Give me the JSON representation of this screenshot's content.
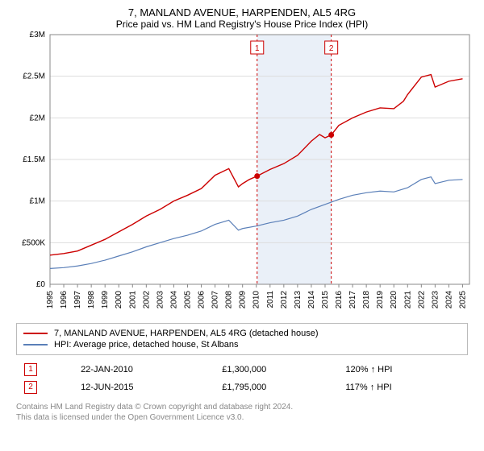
{
  "title": "7, MANLAND AVENUE, HARPENDEN, AL5 4RG",
  "subtitle": "Price paid vs. HM Land Registry's House Price Index (HPI)",
  "chart": {
    "type": "line",
    "background_color": "#ffffff",
    "plot_border_color": "#888888",
    "grid_color": "#dddddd",
    "xlim": [
      1995,
      2025.5
    ],
    "ylim": [
      0,
      3000000
    ],
    "yticks": [
      0,
      500000,
      1000000,
      1500000,
      2000000,
      2500000,
      3000000
    ],
    "ytick_labels": [
      "£0",
      "£500K",
      "£1M",
      "£1.5M",
      "£2M",
      "£2.5M",
      "£3M"
    ],
    "xticks": [
      1995,
      1996,
      1997,
      1998,
      1999,
      2000,
      2001,
      2002,
      2003,
      2004,
      2005,
      2006,
      2007,
      2008,
      2009,
      2010,
      2011,
      2012,
      2013,
      2014,
      2015,
      2016,
      2017,
      2018,
      2019,
      2020,
      2021,
      2022,
      2023,
      2024,
      2025
    ],
    "shaded_band": {
      "from": 2010.06,
      "to": 2015.45,
      "fill": "#eaf0f8"
    },
    "series": [
      {
        "name": "property",
        "color": "#cc0000",
        "line_width": 1.4,
        "points": [
          [
            1995,
            350000
          ],
          [
            1996,
            370000
          ],
          [
            1997,
            400000
          ],
          [
            1998,
            470000
          ],
          [
            1999,
            540000
          ],
          [
            2000,
            630000
          ],
          [
            2001,
            720000
          ],
          [
            2002,
            820000
          ],
          [
            2003,
            900000
          ],
          [
            2004,
            1000000
          ],
          [
            2005,
            1070000
          ],
          [
            2006,
            1150000
          ],
          [
            2007,
            1310000
          ],
          [
            2008,
            1390000
          ],
          [
            2008.7,
            1170000
          ],
          [
            2009,
            1210000
          ],
          [
            2009.5,
            1260000
          ],
          [
            2010.06,
            1300000
          ],
          [
            2011,
            1380000
          ],
          [
            2012,
            1450000
          ],
          [
            2013,
            1550000
          ],
          [
            2014,
            1720000
          ],
          [
            2014.6,
            1800000
          ],
          [
            2015,
            1760000
          ],
          [
            2015.45,
            1795000
          ],
          [
            2016,
            1910000
          ],
          [
            2017,
            2000000
          ],
          [
            2018,
            2070000
          ],
          [
            2019,
            2120000
          ],
          [
            2020,
            2110000
          ],
          [
            2020.7,
            2200000
          ],
          [
            2021,
            2280000
          ],
          [
            2022,
            2490000
          ],
          [
            2022.7,
            2520000
          ],
          [
            2023,
            2370000
          ],
          [
            2024,
            2440000
          ],
          [
            2025,
            2470000
          ]
        ]
      },
      {
        "name": "hpi",
        "color": "#5a7fb8",
        "line_width": 1.2,
        "points": [
          [
            1995,
            190000
          ],
          [
            1996,
            200000
          ],
          [
            1997,
            220000
          ],
          [
            1998,
            250000
          ],
          [
            1999,
            290000
          ],
          [
            2000,
            340000
          ],
          [
            2001,
            390000
          ],
          [
            2002,
            450000
          ],
          [
            2003,
            500000
          ],
          [
            2004,
            550000
          ],
          [
            2005,
            590000
          ],
          [
            2006,
            640000
          ],
          [
            2007,
            720000
          ],
          [
            2008,
            770000
          ],
          [
            2008.7,
            650000
          ],
          [
            2009,
            670000
          ],
          [
            2010,
            700000
          ],
          [
            2011,
            740000
          ],
          [
            2012,
            770000
          ],
          [
            2013,
            820000
          ],
          [
            2014,
            900000
          ],
          [
            2015,
            960000
          ],
          [
            2016,
            1020000
          ],
          [
            2017,
            1070000
          ],
          [
            2018,
            1100000
          ],
          [
            2019,
            1120000
          ],
          [
            2020,
            1110000
          ],
          [
            2021,
            1160000
          ],
          [
            2022,
            1260000
          ],
          [
            2022.7,
            1290000
          ],
          [
            2023,
            1210000
          ],
          [
            2024,
            1250000
          ],
          [
            2025,
            1260000
          ]
        ]
      }
    ],
    "sale_markers": [
      {
        "label": "1",
        "x": 2010.06,
        "y": 1300000
      },
      {
        "label": "2",
        "x": 2015.45,
        "y": 1795000
      }
    ],
    "marker_dot_color": "#cc0000",
    "marker_dot_radius": 3.5,
    "marker_line_color": "#cc0000",
    "marker_box_border": "#cc0000"
  },
  "legend": {
    "items": [
      {
        "color": "#cc0000",
        "label": "7, MANLAND AVENUE, HARPENDEN, AL5 4RG (detached house)"
      },
      {
        "color": "#5a7fb8",
        "label": "HPI: Average price, detached house, St Albans"
      }
    ]
  },
  "sales": [
    {
      "marker": "1",
      "date": "22-JAN-2010",
      "price": "£1,300,000",
      "pct": "120% ↑ HPI"
    },
    {
      "marker": "2",
      "date": "12-JUN-2015",
      "price": "£1,795,000",
      "pct": "117% ↑ HPI"
    }
  ],
  "footer_line1": "Contains HM Land Registry data © Crown copyright and database right 2024.",
  "footer_line2": "This data is licensed under the Open Government Licence v3.0."
}
